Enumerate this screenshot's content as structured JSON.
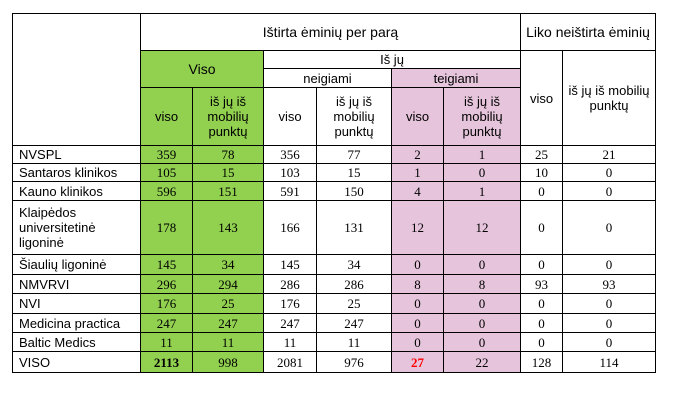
{
  "header": {
    "tested_per_day": "Ištirta ėminių per parą",
    "remaining_untested": "Liko neištirta ėminių",
    "total": "Viso",
    "of_which": "Iš jų",
    "negative": "neigiami",
    "positive": "teigiami",
    "viso": "viso",
    "of_which_mobile": "iš jų iš mobilių punktų"
  },
  "colors": {
    "total_group": "#92d050",
    "positive_group": "#e6c5dc",
    "highlight_text": "#ff0000"
  },
  "rows": [
    {
      "name": "NVSPL",
      "total": "359",
      "total_mobile": "78",
      "neg": "356",
      "neg_mobile": "77",
      "pos": "2",
      "pos_mobile": "1",
      "rem": "25",
      "rem_mobile": "21"
    },
    {
      "name": "Santaros klinikos",
      "total": "105",
      "total_mobile": "15",
      "neg": "103",
      "neg_mobile": "15",
      "pos": "1",
      "pos_mobile": "0",
      "rem": "10",
      "rem_mobile": "0"
    },
    {
      "name": "Kauno klinikos",
      "total": "596",
      "total_mobile": "151",
      "neg": "591",
      "neg_mobile": "150",
      "pos": "4",
      "pos_mobile": "1",
      "rem": "0",
      "rem_mobile": "0"
    },
    {
      "name": "Klaipėdos universitetinė ligoninė",
      "total": "178",
      "total_mobile": "143",
      "neg": "166",
      "neg_mobile": "131",
      "pos": "12",
      "pos_mobile": "12",
      "rem": "0",
      "rem_mobile": "0"
    },
    {
      "name": "Šiaulių ligoninė",
      "total": "145",
      "total_mobile": "34",
      "neg": "145",
      "neg_mobile": "34",
      "pos": "0",
      "pos_mobile": "0",
      "rem": "0",
      "rem_mobile": "0"
    },
    {
      "name": "NMVRVI",
      "total": "296",
      "total_mobile": "294",
      "neg": "286",
      "neg_mobile": "286",
      "pos": "8",
      "pos_mobile": "8",
      "rem": "93",
      "rem_mobile": "93"
    },
    {
      "name": "NVI",
      "total": "176",
      "total_mobile": "25",
      "neg": "176",
      "neg_mobile": "25",
      "pos": "0",
      "pos_mobile": "0",
      "rem": "0",
      "rem_mobile": "0"
    },
    {
      "name": "Medicina practica",
      "total": "247",
      "total_mobile": "247",
      "neg": "247",
      "neg_mobile": "247",
      "pos": "0",
      "pos_mobile": "0",
      "rem": "0",
      "rem_mobile": "0"
    },
    {
      "name": "Baltic Medics",
      "total": "11",
      "total_mobile": "11",
      "neg": "11",
      "neg_mobile": "11",
      "pos": "0",
      "pos_mobile": "0",
      "rem": "0",
      "rem_mobile": "0"
    }
  ],
  "total_row": {
    "name": "VISO",
    "total": "2113",
    "total_mobile": "998",
    "neg": "2081",
    "neg_mobile": "976",
    "pos": "27",
    "pos_mobile": "22",
    "rem": "128",
    "rem_mobile": "114"
  }
}
